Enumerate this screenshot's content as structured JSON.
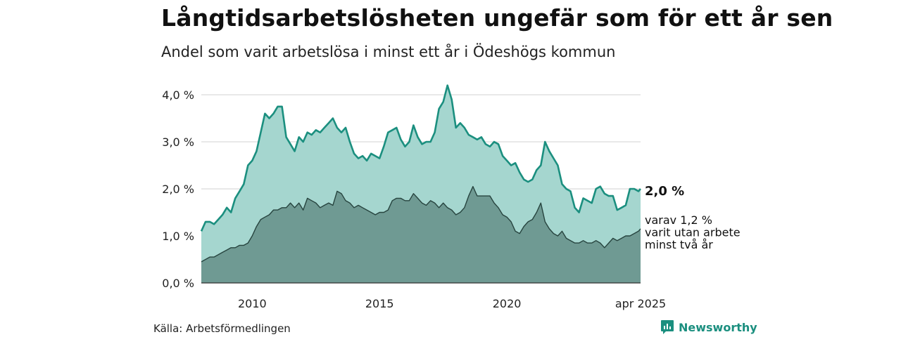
{
  "title": "Långtidsarbetslösheten ungefär som för ett år sen",
  "subtitle": "Andel som varit arbetslösa i minst ett år i Ödeshögs kommun",
  "source": "Källa: Arbetsförmedlingen",
  "brand": "Newsworthy",
  "colors": {
    "main_line": "#1b8f7f",
    "main_fill": "#a5d6cf",
    "sub_line": "#27443f",
    "sub_fill": "#6f9a93",
    "grid": "#d9d9d9",
    "brand": "#1b8f7f"
  },
  "chart_data": {
    "type": "area",
    "x_start": "2008-01",
    "x_end": "2025-04",
    "x_ticks": [
      {
        "date": "2010-01",
        "label": "2010"
      },
      {
        "date": "2015-01",
        "label": "2015"
      },
      {
        "date": "2020-01",
        "label": "2020"
      },
      {
        "date": "2025-04",
        "label": "apr 2025"
      }
    ],
    "y_ticks": [
      {
        "value": 0,
        "label": "0,0 %"
      },
      {
        "value": 1,
        "label": "1,0 %"
      },
      {
        "value": 2,
        "label": "2,0 %"
      },
      {
        "value": 3,
        "label": "3,0 %"
      },
      {
        "value": 4,
        "label": "4,0 %"
      }
    ],
    "ylim": [
      0,
      4.3
    ],
    "grid": true,
    "end_labels": {
      "main": "2,0 %",
      "sub_lines": [
        "varav 1,2 %",
        "varit utan arbete",
        "minst två år"
      ]
    },
    "series": [
      {
        "key": "main",
        "points": [
          [
            "2008-01",
            1.1
          ],
          [
            "2008-03",
            1.3
          ],
          [
            "2008-05",
            1.3
          ],
          [
            "2008-07",
            1.25
          ],
          [
            "2008-09",
            1.35
          ],
          [
            "2008-11",
            1.45
          ],
          [
            "2009-01",
            1.6
          ],
          [
            "2009-03",
            1.5
          ],
          [
            "2009-05",
            1.8
          ],
          [
            "2009-07",
            1.95
          ],
          [
            "2009-09",
            2.1
          ],
          [
            "2009-11",
            2.5
          ],
          [
            "2010-01",
            2.6
          ],
          [
            "2010-03",
            2.8
          ],
          [
            "2010-05",
            3.2
          ],
          [
            "2010-07",
            3.6
          ],
          [
            "2010-09",
            3.5
          ],
          [
            "2010-11",
            3.6
          ],
          [
            "2011-01",
            3.75
          ],
          [
            "2011-03",
            3.75
          ],
          [
            "2011-05",
            3.1
          ],
          [
            "2011-07",
            2.95
          ],
          [
            "2011-09",
            2.8
          ],
          [
            "2011-11",
            3.1
          ],
          [
            "2012-01",
            3.0
          ],
          [
            "2012-03",
            3.2
          ],
          [
            "2012-05",
            3.15
          ],
          [
            "2012-07",
            3.25
          ],
          [
            "2012-09",
            3.2
          ],
          [
            "2012-11",
            3.3
          ],
          [
            "2013-01",
            3.4
          ],
          [
            "2013-03",
            3.5
          ],
          [
            "2013-05",
            3.3
          ],
          [
            "2013-07",
            3.2
          ],
          [
            "2013-09",
            3.3
          ],
          [
            "2013-11",
            3.0
          ],
          [
            "2014-01",
            2.75
          ],
          [
            "2014-03",
            2.65
          ],
          [
            "2014-05",
            2.7
          ],
          [
            "2014-07",
            2.6
          ],
          [
            "2014-09",
            2.75
          ],
          [
            "2014-11",
            2.7
          ],
          [
            "2015-01",
            2.65
          ],
          [
            "2015-03",
            2.9
          ],
          [
            "2015-05",
            3.2
          ],
          [
            "2015-07",
            3.25
          ],
          [
            "2015-09",
            3.3
          ],
          [
            "2015-11",
            3.05
          ],
          [
            "2016-01",
            2.9
          ],
          [
            "2016-03",
            3.0
          ],
          [
            "2016-05",
            3.35
          ],
          [
            "2016-07",
            3.1
          ],
          [
            "2016-09",
            2.95
          ],
          [
            "2016-11",
            3.0
          ],
          [
            "2017-01",
            3.0
          ],
          [
            "2017-03",
            3.2
          ],
          [
            "2017-05",
            3.7
          ],
          [
            "2017-07",
            3.85
          ],
          [
            "2017-09",
            4.2
          ],
          [
            "2017-11",
            3.9
          ],
          [
            "2018-01",
            3.3
          ],
          [
            "2018-03",
            3.4
          ],
          [
            "2018-05",
            3.3
          ],
          [
            "2018-07",
            3.15
          ],
          [
            "2018-09",
            3.1
          ],
          [
            "2018-11",
            3.05
          ],
          [
            "2019-01",
            3.1
          ],
          [
            "2019-03",
            2.95
          ],
          [
            "2019-05",
            2.9
          ],
          [
            "2019-07",
            3.0
          ],
          [
            "2019-09",
            2.95
          ],
          [
            "2019-11",
            2.7
          ],
          [
            "2020-01",
            2.6
          ],
          [
            "2020-03",
            2.5
          ],
          [
            "2020-05",
            2.55
          ],
          [
            "2020-07",
            2.35
          ],
          [
            "2020-09",
            2.2
          ],
          [
            "2020-11",
            2.15
          ],
          [
            "2021-01",
            2.2
          ],
          [
            "2021-03",
            2.4
          ],
          [
            "2021-05",
            2.5
          ],
          [
            "2021-07",
            3.0
          ],
          [
            "2021-09",
            2.8
          ],
          [
            "2021-11",
            2.65
          ],
          [
            "2022-01",
            2.5
          ],
          [
            "2022-03",
            2.1
          ],
          [
            "2022-05",
            2.0
          ],
          [
            "2022-07",
            1.95
          ],
          [
            "2022-09",
            1.6
          ],
          [
            "2022-11",
            1.5
          ],
          [
            "2023-01",
            1.8
          ],
          [
            "2023-03",
            1.75
          ],
          [
            "2023-05",
            1.7
          ],
          [
            "2023-07",
            2.0
          ],
          [
            "2023-09",
            2.05
          ],
          [
            "2023-11",
            1.9
          ],
          [
            "2024-01",
            1.85
          ],
          [
            "2024-03",
            1.85
          ],
          [
            "2024-05",
            1.55
          ],
          [
            "2024-07",
            1.6
          ],
          [
            "2024-09",
            1.65
          ],
          [
            "2024-11",
            2.0
          ],
          [
            "2025-01",
            2.0
          ],
          [
            "2025-03",
            1.95
          ],
          [
            "2025-04",
            2.0
          ]
        ]
      },
      {
        "key": "sub",
        "points": [
          [
            "2008-01",
            0.45
          ],
          [
            "2008-03",
            0.5
          ],
          [
            "2008-05",
            0.55
          ],
          [
            "2008-07",
            0.55
          ],
          [
            "2008-09",
            0.6
          ],
          [
            "2008-11",
            0.65
          ],
          [
            "2009-01",
            0.7
          ],
          [
            "2009-03",
            0.75
          ],
          [
            "2009-05",
            0.75
          ],
          [
            "2009-07",
            0.8
          ],
          [
            "2009-09",
            0.8
          ],
          [
            "2009-11",
            0.85
          ],
          [
            "2010-01",
            1.0
          ],
          [
            "2010-03",
            1.2
          ],
          [
            "2010-05",
            1.35
          ],
          [
            "2010-07",
            1.4
          ],
          [
            "2010-09",
            1.45
          ],
          [
            "2010-11",
            1.55
          ],
          [
            "2011-01",
            1.55
          ],
          [
            "2011-03",
            1.6
          ],
          [
            "2011-05",
            1.6
          ],
          [
            "2011-07",
            1.7
          ],
          [
            "2011-09",
            1.6
          ],
          [
            "2011-11",
            1.7
          ],
          [
            "2012-01",
            1.55
          ],
          [
            "2012-03",
            1.8
          ],
          [
            "2012-05",
            1.75
          ],
          [
            "2012-07",
            1.7
          ],
          [
            "2012-09",
            1.6
          ],
          [
            "2012-11",
            1.65
          ],
          [
            "2013-01",
            1.7
          ],
          [
            "2013-03",
            1.65
          ],
          [
            "2013-05",
            1.95
          ],
          [
            "2013-07",
            1.9
          ],
          [
            "2013-09",
            1.75
          ],
          [
            "2013-11",
            1.7
          ],
          [
            "2014-01",
            1.6
          ],
          [
            "2014-03",
            1.65
          ],
          [
            "2014-05",
            1.6
          ],
          [
            "2014-07",
            1.55
          ],
          [
            "2014-09",
            1.5
          ],
          [
            "2014-11",
            1.45
          ],
          [
            "2015-01",
            1.5
          ],
          [
            "2015-03",
            1.5
          ],
          [
            "2015-05",
            1.55
          ],
          [
            "2015-07",
            1.75
          ],
          [
            "2015-09",
            1.8
          ],
          [
            "2015-11",
            1.8
          ],
          [
            "2016-01",
            1.75
          ],
          [
            "2016-03",
            1.75
          ],
          [
            "2016-05",
            1.9
          ],
          [
            "2016-07",
            1.8
          ],
          [
            "2016-09",
            1.7
          ],
          [
            "2016-11",
            1.65
          ],
          [
            "2017-01",
            1.75
          ],
          [
            "2017-03",
            1.7
          ],
          [
            "2017-05",
            1.6
          ],
          [
            "2017-07",
            1.7
          ],
          [
            "2017-09",
            1.6
          ],
          [
            "2017-11",
            1.55
          ],
          [
            "2018-01",
            1.45
          ],
          [
            "2018-03",
            1.5
          ],
          [
            "2018-05",
            1.6
          ],
          [
            "2018-07",
            1.85
          ],
          [
            "2018-09",
            2.05
          ],
          [
            "2018-11",
            1.85
          ],
          [
            "2019-01",
            1.85
          ],
          [
            "2019-03",
            1.85
          ],
          [
            "2019-05",
            1.85
          ],
          [
            "2019-07",
            1.7
          ],
          [
            "2019-09",
            1.6
          ],
          [
            "2019-11",
            1.45
          ],
          [
            "2020-01",
            1.4
          ],
          [
            "2020-03",
            1.3
          ],
          [
            "2020-05",
            1.1
          ],
          [
            "2020-07",
            1.05
          ],
          [
            "2020-09",
            1.2
          ],
          [
            "2020-11",
            1.3
          ],
          [
            "2021-01",
            1.35
          ],
          [
            "2021-03",
            1.5
          ],
          [
            "2021-05",
            1.7
          ],
          [
            "2021-07",
            1.3
          ],
          [
            "2021-09",
            1.15
          ],
          [
            "2021-11",
            1.05
          ],
          [
            "2022-01",
            1.0
          ],
          [
            "2022-03",
            1.1
          ],
          [
            "2022-05",
            0.95
          ],
          [
            "2022-07",
            0.9
          ],
          [
            "2022-09",
            0.85
          ],
          [
            "2022-11",
            0.85
          ],
          [
            "2023-01",
            0.9
          ],
          [
            "2023-03",
            0.85
          ],
          [
            "2023-05",
            0.85
          ],
          [
            "2023-07",
            0.9
          ],
          [
            "2023-09",
            0.85
          ],
          [
            "2023-11",
            0.75
          ],
          [
            "2024-01",
            0.85
          ],
          [
            "2024-03",
            0.95
          ],
          [
            "2024-05",
            0.9
          ],
          [
            "2024-07",
            0.95
          ],
          [
            "2024-09",
            1.0
          ],
          [
            "2024-11",
            1.0
          ],
          [
            "2025-01",
            1.05
          ],
          [
            "2025-03",
            1.1
          ],
          [
            "2025-04",
            1.15
          ]
        ]
      }
    ]
  }
}
